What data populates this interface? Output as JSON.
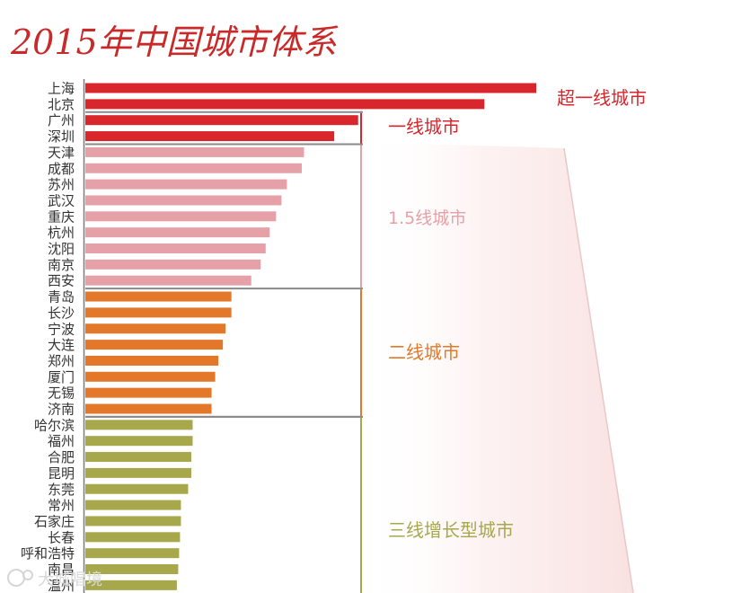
{
  "chart_data": {
    "type": "bar",
    "orientation": "horizontal",
    "title": "2015年中国城市体系",
    "categories": [
      "上海",
      "北京",
      "广州",
      "深圳",
      "天津",
      "成都",
      "苏州",
      "武汉",
      "重庆",
      "杭州",
      "沈阳",
      "南京",
      "西安",
      "青岛",
      "长沙",
      "宁波",
      "大连",
      "郑州",
      "厦门",
      "无锡",
      "济南",
      "哈尔滨",
      "福州",
      "合肥",
      "昆明",
      "东莞",
      "常州",
      "石家庄",
      "长春",
      "呼和浩特",
      "南昌",
      "温州"
    ],
    "values": [
      100,
      88.5,
      60.5,
      55.2,
      48.5,
      48.0,
      44.7,
      43.5,
      42.3,
      40.9,
      40.0,
      38.9,
      36.8,
      32.4,
      32.4,
      31.1,
      30.5,
      29.5,
      28.8,
      28.0,
      28.0,
      23.8,
      23.8,
      23.5,
      23.5,
      22.8,
      21.2,
      21.2,
      21.0,
      20.8,
      20.6,
      20.3
    ],
    "xlim": [
      0,
      100
    ],
    "grid": false,
    "legend": "none",
    "tiers": [
      {
        "name": "超一线城市",
        "start": 0,
        "end": 1,
        "color": "#d8262c"
      },
      {
        "name": "一线城市",
        "start": 2,
        "end": 3,
        "color": "#d8262c"
      },
      {
        "name": "1.5线城市",
        "start": 4,
        "end": 12,
        "color": "#e5a1a7"
      },
      {
        "name": "二线城市",
        "start": 13,
        "end": 20,
        "color": "#e4782a"
      },
      {
        "name": "三线增长型城市",
        "start": 21,
        "end": 31,
        "color": "#a7a84c"
      }
    ]
  },
  "watermark": "大城唱境"
}
